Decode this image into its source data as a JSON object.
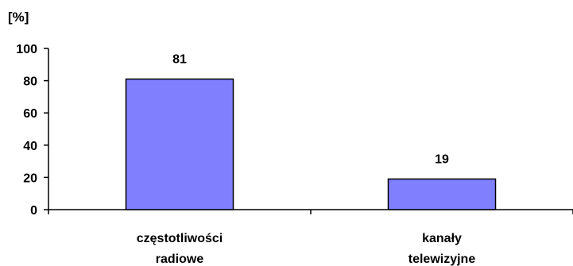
{
  "chart_data": {
    "type": "bar",
    "unit_label": "[%]",
    "categories": [
      [
        "częstotliwości",
        "radiowe"
      ],
      [
        "kanały",
        "telewizyjne"
      ]
    ],
    "values": [
      81,
      19
    ],
    "data_labels": [
      "81",
      "19"
    ],
    "ylim": [
      0,
      100
    ],
    "yticks": [
      "0",
      "20",
      "40",
      "60",
      "80",
      "100"
    ],
    "grid": false,
    "legend": "none",
    "bar_color": "#8080ff",
    "bar_edge_color": "#000000"
  }
}
